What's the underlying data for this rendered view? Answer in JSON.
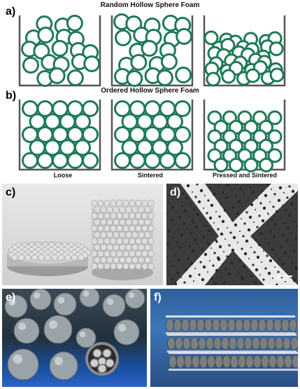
{
  "section_a": {
    "label": "a)",
    "title": "Random Hollow Sphere Foam"
  },
  "section_b": {
    "label": "b)",
    "title": "Ordered Hollow Sphere Foam"
  },
  "captions": [
    "Loose",
    "Sintered",
    "Pressed and Sintered"
  ],
  "panel_c": {
    "label": "c)"
  },
  "panel_d": {
    "label": "d)",
    "scale_bar": "100μm"
  },
  "panel_e": {
    "label": "e)"
  },
  "panel_f": {
    "label": "f)"
  },
  "colors": {
    "sphere_ring": "#1e7a55",
    "container": "#555555"
  }
}
